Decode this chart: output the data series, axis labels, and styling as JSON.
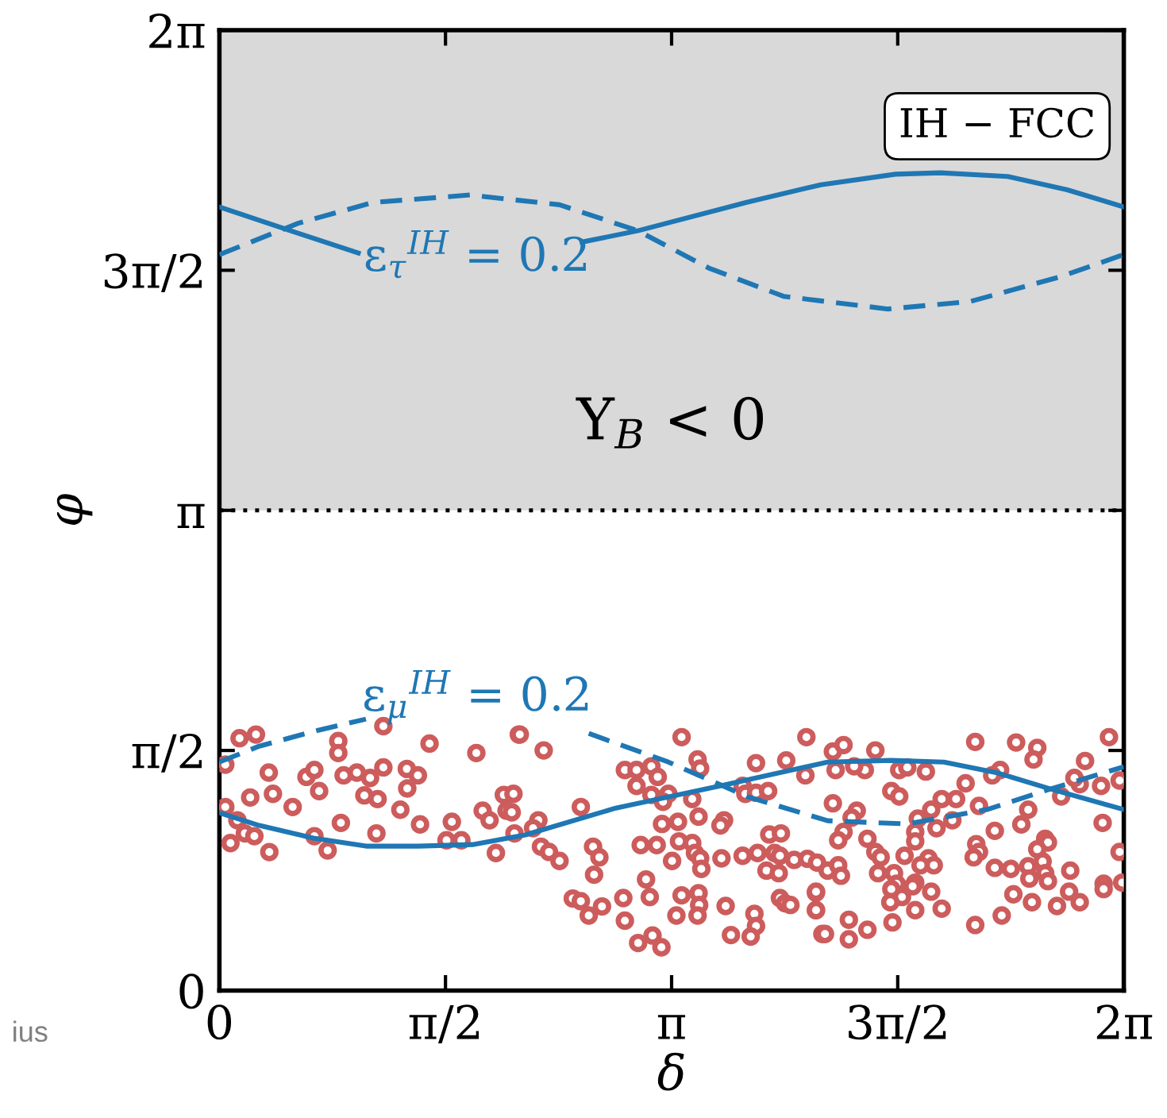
{
  "chart_data": {
    "type": "line",
    "xlabel": "δ",
    "ylabel": "φ",
    "xlim": [
      0,
      6.28319
    ],
    "ylim": [
      0,
      6.28319
    ],
    "xticks": [
      0,
      {
        "value": 1.5708,
        "label": "π/2"
      },
      {
        "value": 3.14159,
        "label": "π"
      },
      {
        "value": 4.71239,
        "label": "3π/2"
      },
      {
        "value": 6.28319,
        "label": "2π"
      }
    ],
    "yticks": [
      0,
      {
        "value": 1.5708,
        "label": "π/2"
      },
      {
        "value": 3.14159,
        "label": "π"
      },
      {
        "value": 4.71239,
        "label": "3π/2"
      },
      {
        "value": 6.28319,
        "label": "2π"
      }
    ],
    "grid": false,
    "bands": [
      {
        "axis": "y",
        "from": 3.14159,
        "to": 6.28319,
        "label": "Y$_{B}$ < 0",
        "color": "#d9d9d9"
      }
    ],
    "ref_lines": [
      {
        "axis": "y",
        "value": 3.14159,
        "color": "#000000",
        "line_style": "dotted"
      }
    ],
    "annotations": [
      "ε$_{τ}$$^{IH}$ = 0.2",
      "ε$_{μ}$$^{IH}$ = 0.2",
      "IH − FCC",
      "ius"
    ],
    "series": [
      {
        "type": "scatter",
        "marker": "circle",
        "color": "#cd5c5c",
        "x": [
          0.14,
          0.254,
          0.041,
          0.826,
          0.826,
          1.139,
          1.46,
          1.785,
          2.08,
          0.343,
          0.605,
          0.66,
          0.863,
          0.955,
          1.047,
          1.139,
          1.302,
          1.379,
          1.305,
          0.214,
          0.372,
          0.693,
          0.509,
          1.007,
          1.099,
          1.257,
          1.394,
          1.615,
          1.829,
          1.877,
          1.976,
          1.995,
          0.041,
          0.125,
          0.077,
          0.177,
          0.243,
          0.347,
          0.66,
          0.752,
          0.844,
          1.091,
          1.578,
          1.681,
          1.921,
          2.05,
          2.087,
          2.253,
          3.211,
          4.078,
          2.817,
          2.898,
          3.001,
          3.045,
          3.322,
          3.34,
          3.728,
          3.938,
          4.071,
          2.898,
          3.001,
          3.119,
          3.082,
          3.285,
          3.635,
          3.654,
          3.728,
          3.812,
          2.511,
          2.216,
          2.179,
          2.234,
          2.29,
          2.363,
          2.596,
          2.64,
          2.603,
          2.927,
          3.038,
          3.075,
          3.186,
          3.329,
          3.193,
          3.285,
          3.304,
          3.34,
          3.145,
          3.348,
          3.488,
          3.506,
          3.481,
          3.82,
          3.901,
          3.635,
          3.739,
          3.857,
          3.894,
          3.993,
          4.085,
          3.801,
          3.886,
          2.455,
          2.511,
          2.566,
          2.658,
          2.806,
          2.817,
          2.964,
          2.99,
          3.211,
          3.329,
          3.333,
          3.322,
          3.175,
          3.517,
          3.717,
          3.728,
          3.691,
          3.554,
          3.894,
          3.93,
          3.967,
          4.144,
          4.144,
          4.189,
          2.909,
          3.009,
          3.071,
          2.043,
          2.031,
          4.262,
          4.336,
          4.557,
          4.484,
          4.281,
          4.41,
          4.723,
          4.779,
          4.908,
          4.668,
          4.723,
          5.251,
          5.535,
          5.682,
          5.656,
          6.014,
          6.18,
          5.424,
          5.369,
          5.184,
          5.277,
          5.018,
          5.118,
          4.262,
          4.428,
          4.392,
          4.945,
          4.852,
          4.336,
          4.299,
          4.502,
          4.834,
          4.834,
          4.982,
          5.092,
          5.387,
          5.619,
          5.571,
          6.125,
          5.977,
          5.94,
          6.254,
          5.848,
          5.737,
          5.756,
          5.682,
          5.258,
          5.277,
          5.24,
          5.387,
          5.498,
          5.619,
          5.719,
          5.737,
          5.627,
          5.756,
          5.911,
          4.557,
          4.594,
          4.76,
          4.926,
          4.963,
          4.871,
          4.152,
          4.226,
          4.299,
          4.318,
          4.145,
          4.145,
          4.576,
          4.687,
          4.705,
          4.668,
          4.834,
          4.816,
          4.945,
          4.742,
          4.661,
          4.834,
          5.018,
          5.516,
          5.645,
          5.819,
          5.903,
          5.977,
          6.143,
          6.143,
          6.272,
          6.254,
          6.136,
          4.207,
          4.373,
          4.373,
          4.502,
          4.676,
          5.251,
          5.435
        ],
        "values": [
          1.651,
          1.675,
          1.478,
          1.633,
          1.554,
          1.73,
          1.616,
          1.554,
          1.675,
          1.426,
          1.398,
          1.443,
          1.408,
          1.426,
          1.391,
          1.46,
          1.45,
          1.408,
          1.322,
          1.263,
          1.287,
          1.305,
          1.201,
          1.277,
          1.253,
          1.183,
          1.087,
          1.104,
          1.177,
          1.114,
          1.28,
          1.177,
          1.201,
          1.114,
          0.965,
          1.028,
          1.01,
          0.906,
          1.01,
          0.917,
          1.097,
          1.028,
          0.983,
          0.983,
          0.9,
          1.028,
          1.675,
          1.571,
          1.658,
          1.658,
          1.443,
          1.443,
          1.467,
          1.398,
          1.512,
          1.453,
          1.488,
          1.505,
          1.408,
          1.339,
          1.28,
          1.287,
          1.235,
          1.253,
          1.339,
          1.287,
          1.294,
          1.305,
          1.201,
          1.114,
          1.062,
          0.941,
          0.907,
          0.848,
          0.941,
          0.872,
          0.758,
          0.952,
          0.952,
          1.09,
          1.104,
          1.138,
          0.976,
          0.965,
          0.9,
          0.865,
          0.848,
          0.796,
          0.865,
          1.114,
          1.08,
          1.021,
          1.028,
          0.882,
          0.9,
          0.9,
          0.882,
          0.855,
          0.862,
          0.785,
          0.768,
          0.602,
          0.585,
          0.491,
          0.55,
          0.605,
          0.457,
          0.727,
          0.612,
          0.623,
          0.637,
          0.56,
          0.491,
          0.491,
          0.553,
          0.502,
          0.422,
          0.353,
          0.363,
          0.605,
          0.571,
          0.56,
          0.64,
          0.526,
          0.37,
          0.311,
          0.36,
          0.283,
          1.287,
          1.166,
          1.564,
          1.606,
          1.571,
          1.443,
          1.443,
          1.467,
          1.443,
          1.46,
          1.433,
          1.305,
          1.27,
          1.627,
          1.623,
          1.588,
          1.512,
          1.502,
          1.658,
          1.443,
          1.408,
          1.356,
          1.208,
          1.253,
          1.253,
          1.225,
          1.177,
          1.131,
          1.183,
          1.125,
          1.038,
          0.983,
          0.993,
          1.038,
          0.976,
          1.062,
          1.114,
          1.045,
          1.183,
          1.087,
          1.339,
          1.35,
          1.391,
          1.374,
          1.27,
          0.993,
          0.969,
          0.924,
          0.958,
          0.907,
          0.872,
          0.803,
          0.796,
          0.813,
          0.844,
          0.768,
          0.733,
          0.716,
          0.785,
          0.907,
          0.872,
          0.882,
          0.865,
          0.82,
          0.82,
          0.837,
          0.785,
          0.82,
          0.751,
          0.647,
          0.526,
          0.768,
          0.768,
          0.699,
          0.664,
          0.706,
          0.682,
          0.647,
          0.612,
          0.578,
          0.526,
          0.536,
          0.63,
          0.578,
          0.553,
          0.647,
          0.578,
          0.699,
          0.664,
          0.706,
          0.907,
          1.097,
          0.37,
          0.463,
          0.335,
          0.398,
          0.446,
          0.429,
          0.491
        ]
      },
      {
        "line_style": "solid",
        "color": "#1f77b4",
        "x": [
          0,
          0.495,
          0.965,
          1.7,
          2.519,
          2.907,
          3.659,
          4.178,
          4.697,
          5.008,
          5.475,
          5.889,
          6.283
        ],
        "values": [
          5.127,
          4.971,
          4.825,
          null,
          4.897,
          4.971,
          5.156,
          5.272,
          5.341,
          5.35,
          5.326,
          5.239,
          5.127
        ]
      },
      {
        "line_style": "dashed",
        "color": "#1f77b4",
        "x": [
          0,
          0.548,
          1.066,
          1.741,
          2.363,
          2.907,
          3.4,
          3.919,
          4.645,
          5.216,
          5.838,
          6.283
        ],
        "values": [
          4.815,
          5.02,
          5.156,
          5.205,
          5.141,
          4.971,
          4.727,
          4.542,
          4.459,
          4.508,
          4.669,
          4.815
        ]
      },
      {
        "line_style": "solid",
        "color": "#1f77b4",
        "x": [
          0,
          0.277,
          0.653,
          1.018,
          1.383,
          1.759,
          2.124,
          2.754,
          3.485,
          4.226,
          4.668,
          5.033,
          5.409,
          5.774,
          6.283
        ],
        "values": [
          1.163,
          1.08,
          0.997,
          0.945,
          0.945,
          0.955,
          1.018,
          1.194,
          1.34,
          1.495,
          1.506,
          1.495,
          1.423,
          1.319,
          1.184
        ]
      },
      {
        "line_style": "dashed",
        "color": "#1f77b4",
        "x": [
          0,
          0.277,
          0.686,
          1.018,
          1.8,
          2.566,
          3.119,
          3.673,
          4.226,
          4.779,
          5.332,
          5.774,
          6.283
        ],
        "values": [
          1.495,
          1.599,
          1.703,
          1.776,
          null,
          1.682,
          1.495,
          1.267,
          1.111,
          1.09,
          1.184,
          1.319,
          1.464
        ]
      }
    ]
  }
}
